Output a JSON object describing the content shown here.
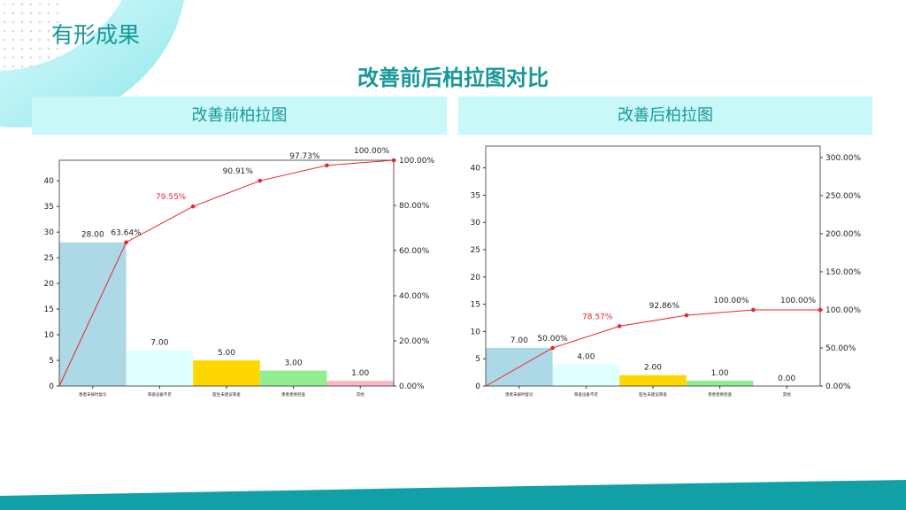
{
  "slide": {
    "title": "有形成果",
    "main_title": "改善前后柏拉图对比"
  },
  "colors": {
    "accent": "#17989a",
    "bars": [
      "#add8e6",
      "#e0ffff",
      "#ffd700",
      "#90ee90",
      "#ffb6c1"
    ],
    "line": "#e8262e"
  },
  "chart_data": [
    {
      "type": "bar",
      "title": "改善前柏拉图",
      "categories": [
        "患者未按时复诊",
        "筛查设备不足",
        "医生未建议筛查",
        "患者拒绝检查",
        "其他"
      ],
      "values": [
        28,
        7,
        5,
        3,
        1
      ],
      "value_labels": [
        "28.00",
        "7.00",
        "5.00",
        "3.00",
        "1.00"
      ],
      "cumulative_percent": [
        63.64,
        79.55,
        90.91,
        97.73,
        100.0
      ],
      "cumulative_labels": [
        "63.64%",
        "79.55%",
        "90.91%",
        "97.73%",
        "100.00%"
      ],
      "ylim": [
        0,
        44
      ],
      "yticks": [
        0,
        5,
        10,
        15,
        20,
        25,
        30,
        35,
        40
      ],
      "y2lim": [
        0,
        100
      ],
      "y2ticks": [
        0,
        20,
        40,
        60,
        80,
        100
      ],
      "y2ticklabels": [
        "0.00%",
        "20.00%",
        "40.00%",
        "60.00%",
        "80.00%",
        "100.00%"
      ]
    },
    {
      "type": "bar",
      "title": "改善后柏拉图",
      "categories": [
        "患者未按时复诊",
        "筛查设备不足",
        "医生未建议筛查",
        "患者拒绝检查",
        "其他"
      ],
      "values": [
        7,
        4,
        2,
        1,
        0
      ],
      "value_labels": [
        "7.00",
        "4.00",
        "2.00",
        "1.00",
        "0.00"
      ],
      "cumulative_percent": [
        50.0,
        78.57,
        92.86,
        100.0,
        100.0
      ],
      "cumulative_labels": [
        "50.00%",
        "78.57%",
        "92.86%",
        "100.00%",
        "100.00%"
      ],
      "ylim": [
        0,
        44
      ],
      "yticks": [
        0,
        5,
        10,
        15,
        20,
        25,
        30,
        35,
        40
      ],
      "y2lim": [
        0,
        315
      ],
      "y2ticks": [
        0,
        50,
        100,
        150,
        200,
        250,
        300
      ],
      "y2ticklabels": [
        "0.00%",
        "50.00%",
        "100.00%",
        "150.00%",
        "200.00%",
        "250.00%",
        "300.00%"
      ]
    }
  ]
}
